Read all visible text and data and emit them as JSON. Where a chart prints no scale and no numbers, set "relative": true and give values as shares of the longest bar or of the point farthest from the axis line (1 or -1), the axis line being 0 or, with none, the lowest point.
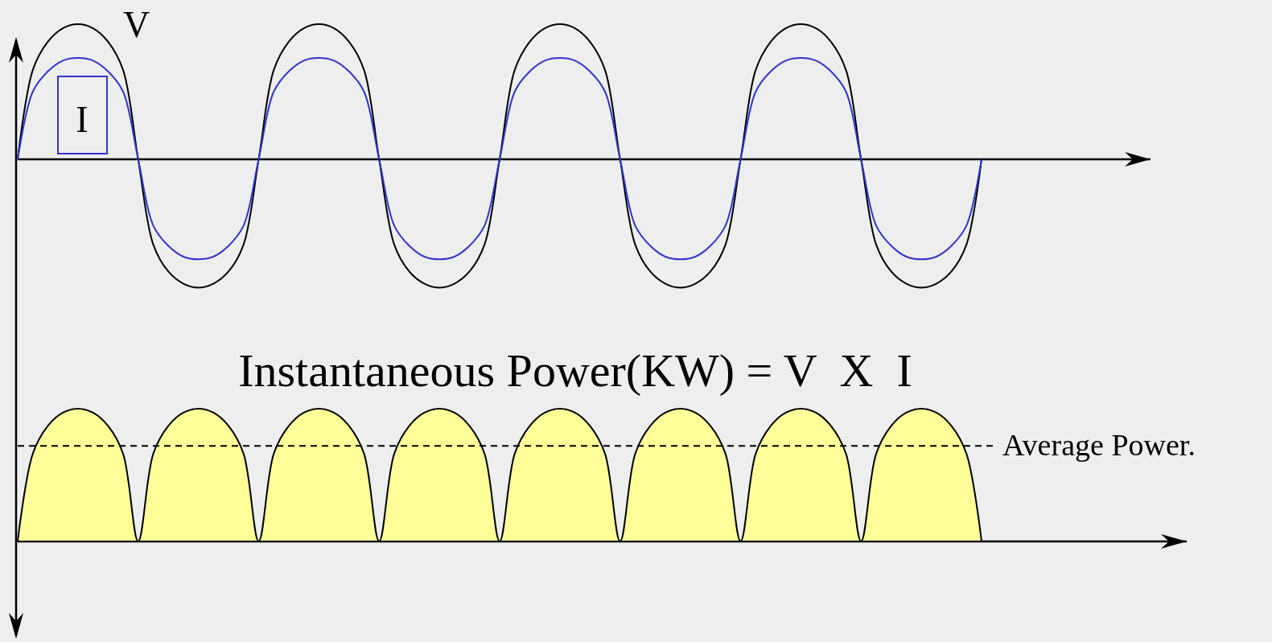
{
  "chart_data": [
    {
      "type": "line",
      "relative": true,
      "categories": [
        null,
        null,
        null,
        null,
        null,
        null,
        null,
        null,
        null,
        null,
        null,
        null,
        null,
        null,
        null,
        null,
        null,
        null,
        null,
        null,
        null,
        null,
        null,
        null,
        null,
        null,
        null,
        null,
        null,
        null,
        null,
        null,
        null,
        null,
        null,
        null,
        null,
        null,
        null,
        null,
        null,
        null,
        null,
        null,
        null,
        null,
        null,
        null,
        null,
        null,
        null,
        null,
        null,
        null,
        null,
        null,
        null,
        null,
        null,
        null,
        null,
        null,
        null,
        null,
        null
      ],
      "series": [
        {
          "name": "V",
          "color": "#000000",
          "values": [
            0,
            0.66,
            0.87,
            0.97,
            1,
            0.97,
            0.87,
            0.66,
            0,
            -0.63,
            -0.83,
            -0.92,
            -0.95,
            -0.92,
            -0.83,
            -0.63,
            0,
            0.66,
            0.87,
            0.97,
            1,
            0.97,
            0.87,
            0.66,
            0,
            -0.63,
            -0.83,
            -0.92,
            -0.95,
            -0.92,
            -0.83,
            -0.63,
            0,
            0.66,
            0.87,
            0.97,
            1,
            0.97,
            0.87,
            0.66,
            0,
            -0.63,
            -0.83,
            -0.92,
            -0.95,
            -0.92,
            -0.83,
            -0.63,
            0,
            0.66,
            0.87,
            0.97,
            1,
            0.97,
            0.87,
            0.66,
            0,
            -0.63,
            -0.83,
            -0.92,
            -0.95,
            -0.92,
            -0.83,
            -0.63,
            0
          ]
        },
        {
          "name": "I",
          "color": "#3333cc",
          "values": [
            0,
            0.5,
            0.65,
            0.73,
            0.75,
            0.73,
            0.65,
            0.5,
            0,
            -0.49,
            -0.64,
            -0.72,
            -0.74,
            -0.72,
            -0.64,
            -0.49,
            0,
            0.5,
            0.65,
            0.73,
            0.75,
            0.73,
            0.65,
            0.5,
            0,
            -0.49,
            -0.64,
            -0.72,
            -0.74,
            -0.72,
            -0.64,
            -0.49,
            0,
            0.5,
            0.65,
            0.73,
            0.75,
            0.73,
            0.65,
            0.5,
            0,
            -0.49,
            -0.64,
            -0.72,
            -0.74,
            -0.72,
            -0.64,
            -0.49,
            0,
            0.5,
            0.65,
            0.73,
            0.75,
            0.73,
            0.65,
            0.5,
            0,
            -0.49,
            -0.64,
            -0.72,
            -0.74,
            -0.72,
            -0.64,
            -0.49,
            0
          ]
        }
      ]
    },
    {
      "type": "area",
      "relative": true,
      "title": "Instantaneous Power(KW) = V  X  I",
      "categories": [
        null,
        null,
        null,
        null,
        null,
        null,
        null,
        null,
        null,
        null,
        null,
        null,
        null,
        null,
        null,
        null,
        null,
        null,
        null,
        null,
        null,
        null,
        null,
        null,
        null,
        null,
        null,
        null,
        null,
        null,
        null,
        null,
        null,
        null,
        null,
        null,
        null,
        null,
        null,
        null,
        null,
        null,
        null,
        null,
        null,
        null,
        null,
        null,
        null,
        null,
        null,
        null,
        null,
        null,
        null,
        null,
        null,
        null,
        null,
        null,
        null,
        null,
        null,
        null,
        null
      ],
      "series": [
        {
          "color": "#ffff99",
          "values": [
            0,
            0.66,
            0.87,
            0.97,
            1,
            0.97,
            0.87,
            0.66,
            0,
            0.66,
            0.87,
            0.97,
            1,
            0.97,
            0.87,
            0.66,
            0,
            0.66,
            0.87,
            0.97,
            1,
            0.97,
            0.87,
            0.66,
            0,
            0.66,
            0.87,
            0.97,
            1,
            0.97,
            0.87,
            0.66,
            0,
            0.66,
            0.87,
            0.97,
            1,
            0.97,
            0.87,
            0.66,
            0,
            0.66,
            0.87,
            0.97,
            1,
            0.97,
            0.87,
            0.66,
            0,
            0.66,
            0.87,
            0.97,
            1,
            0.97,
            0.87,
            0.66,
            0,
            0.66,
            0.87,
            0.97,
            1,
            0.97,
            0.87,
            0.66,
            0
          ]
        }
      ],
      "ref_lines": [
        {
          "axis": "y",
          "value": 0.72,
          "label": "Average Power.",
          "line_style": "dashed"
        }
      ]
    }
  ]
}
